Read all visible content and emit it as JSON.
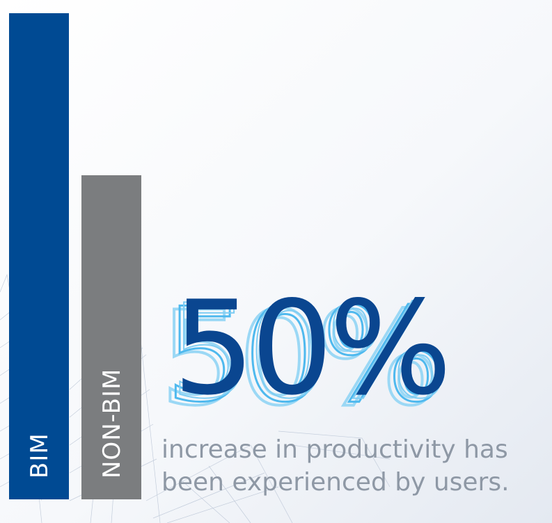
{
  "chart_data": {
    "type": "bar",
    "categories": [
      "BIM",
      "NON-BIM"
    ],
    "values": [
      1.5,
      1.0
    ],
    "colors": [
      "#004a93",
      "#7b7d7f"
    ],
    "ylim": [
      0,
      1.5
    ],
    "grid": false,
    "legend": "none",
    "title": "",
    "xlabel": "",
    "ylabel": ""
  },
  "headline": {
    "value": "50%",
    "color": "#0a4690",
    "outline_color": "#4fb9ee"
  },
  "caption": {
    "line1": "increase in productivity has",
    "line2": "been experienced by users.",
    "color": "#8e98a5"
  },
  "background": {
    "image": "architectural-wireframe-building",
    "sky_color": "#e9eef6"
  }
}
